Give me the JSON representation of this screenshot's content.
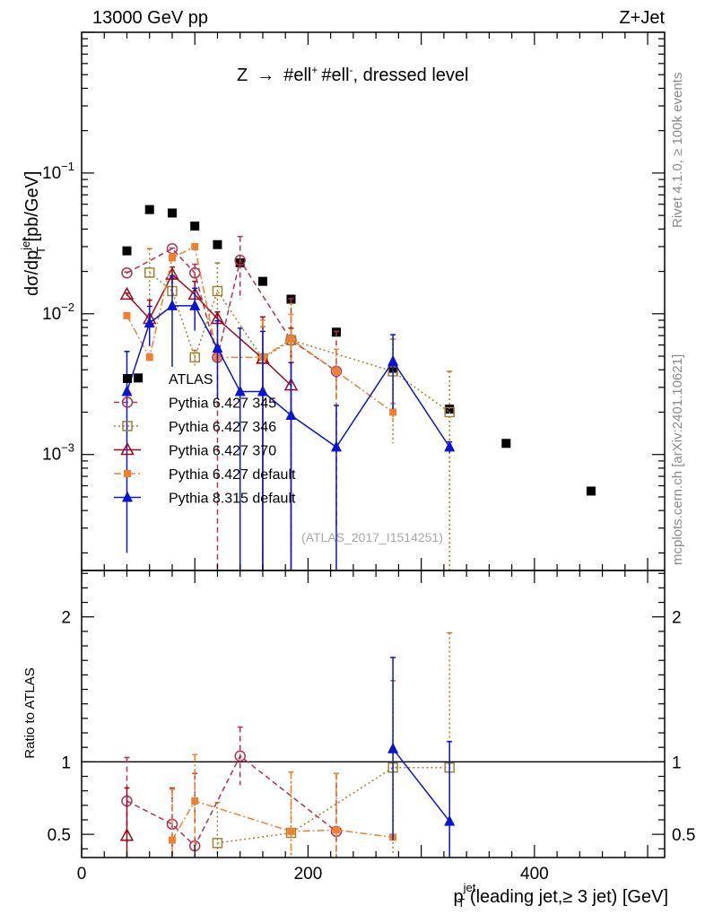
{
  "header": {
    "left": "13000 GeV pp",
    "right": "Z+Jet"
  },
  "side_text": {
    "rivet": "Rivet 4.1.0, ≥ 100k events",
    "mcplots": "mcplots.cern.ch [arXiv:2401.10621]"
  },
  "chart_data": [
    {
      "type": "scatter",
      "panel": "main",
      "title": "Z → #ell⁺ #ell⁻, dressed level",
      "title_parts": {
        "z": "Z",
        "arrow": "→",
        "ell1": "#ell",
        "sup1": "+",
        "ell2": "#ell",
        "sup2": "-",
        "rest": ", dressed level"
      },
      "ylabel": {
        "main": "dσ/dp",
        "sup": "jet",
        "sub": "T",
        "unit": " [pb/GeV]"
      },
      "yscale": "log",
      "ylim": [
        0.00015,
        1.0
      ],
      "xlim": [
        0,
        515
      ],
      "y_ticks": [
        {
          "value": 0.1,
          "base": "10",
          "exp": "−1"
        },
        {
          "value": 0.01,
          "base": "10",
          "exp": "−2"
        },
        {
          "value": 0.001,
          "base": "10",
          "exp": "−3"
        }
      ],
      "watermark": "(ATLAS_2017_I1514251)",
      "legend_position": "middle-left",
      "series": [
        {
          "name": "ATLAS",
          "color": "#000000",
          "marker": "square-filled",
          "line": "none",
          "x": [
            40,
            50,
            60,
            80,
            100,
            120,
            140,
            160,
            185,
            225,
            275,
            325,
            375,
            450
          ],
          "y": [
            0.028,
            0.0035,
            0.055,
            0.052,
            0.042,
            0.031,
            0.023,
            0.017,
            0.0127,
            0.0074,
            0.0041,
            0.0021,
            0.0012,
            0.00055
          ]
        },
        {
          "name": "Pythia 6.427 345",
          "color": "#b5304f",
          "marker": "circle-open",
          "line": "dashed",
          "x": [
            40,
            80,
            100,
            120,
            140,
            185,
            225
          ],
          "y": [
            0.0195,
            0.029,
            0.0195,
            0.0049,
            0.024,
            0.0065,
            0.0039
          ],
          "err_up": [
            0.0003,
            0.0003,
            0.003,
            0.0054,
            0.0114,
            0.0063,
            0.0036
          ]
        },
        {
          "name": "Pythia 6.427 346",
          "color": "#a0822f",
          "marker": "square-open",
          "line": "dotted",
          "x": [
            60,
            80,
            100,
            120,
            160,
            185,
            275,
            325
          ],
          "y": [
            0.0196,
            0.0145,
            0.0049,
            0.0145,
            0.0048,
            0.0065,
            0.0039,
            0.002
          ],
          "err_up": [
            0.0094,
            0.0035,
            0.0006,
            0.0085,
            0.0033,
            0.0053,
            0.0027,
            0.0019
          ]
        },
        {
          "name": "Pythia 6.427 370",
          "color": "#9b0a1c",
          "marker": "triangle-open",
          "line": "solid",
          "x": [
            40,
            60,
            80,
            100,
            120,
            160,
            185
          ],
          "y": [
            0.0137,
            0.0092,
            0.019,
            0.0137,
            0.0092,
            0.0048,
            0.0031
          ],
          "err_up": [
            0.0003,
            0.0033,
            0.0025,
            0.0033,
            0.0011,
            0.0047,
            0.0048
          ]
        },
        {
          "name": "Pythia 6.427 default",
          "color": "#f08030",
          "marker": "square-filled-small",
          "line": "dashdot",
          "x": [
            40,
            60,
            80,
            100,
            120,
            160,
            185,
            225,
            275
          ],
          "y": [
            0.0097,
            0.0049,
            0.025,
            0.03,
            0.0049,
            0.0049,
            0.0066,
            0.0039,
            0.002
          ],
          "err_up": [
            0.0003,
            0.0003,
            0.0016,
            0.0003,
            0.0005,
            0.0041,
            0.0033,
            0.0017,
            0.0003
          ]
        },
        {
          "name": "Pythia 8.315 default",
          "color": "#0a14d2",
          "marker": "triangle-filled",
          "line": "solid",
          "x": [
            40,
            60,
            80,
            100,
            120,
            140,
            160,
            185,
            225,
            275,
            325
          ],
          "y": [
            0.0028,
            0.0086,
            0.0114,
            0.0114,
            0.0057,
            0.0028,
            0.0028,
            0.0019,
            0.00113,
            0.0046,
            0.00113
          ],
          "err_up": [
            0.0026,
            0.0027,
            0.0072,
            0.0038,
            0.0032,
            0.0051,
            0.0047,
            0.0026,
            0.0011,
            0.0025,
            0.0001
          ]
        }
      ]
    },
    {
      "type": "scatter",
      "panel": "ratio",
      "ylabel": "Ratio to ATLAS",
      "xlabel": {
        "main": "p",
        "sup": "jet",
        "sub": "T",
        "rest": " (leading jet,≥ 3 jet) [GeV]"
      },
      "xlim": [
        0,
        515
      ],
      "ylim": [
        0.34,
        2.32
      ],
      "x_ticks": [
        0,
        200,
        400
      ],
      "x_tick_labels": [
        "0",
        "200",
        "400"
      ],
      "y_ticks": [
        0.5,
        1,
        2
      ],
      "y_tick_labels": [
        "0.5",
        "1",
        "2"
      ],
      "reference_line": 1,
      "series": [
        {
          "name": "Pythia 6.427 345",
          "color": "#b5304f",
          "marker": "circle-open",
          "line": "dashed",
          "x": [
            40,
            80,
            100,
            140,
            225
          ],
          "y": [
            0.73,
            0.57,
            0.42,
            1.04,
            0.52
          ],
          "err_up": [
            0.3,
            0.25,
            0.5,
            0.2,
            0.4
          ]
        },
        {
          "name": "Pythia 6.427 346",
          "color": "#a0822f",
          "marker": "square-open",
          "line": "dotted",
          "x": [
            120,
            185,
            275,
            325
          ],
          "y": [
            0.44,
            0.51,
            0.96,
            0.96
          ],
          "err_up": [
            0.28,
            0.42,
            0.6,
            0.93
          ]
        },
        {
          "name": "Pythia 6.427 370",
          "color": "#9b0a1c",
          "marker": "triangle-open",
          "line": "solid",
          "x": [
            40
          ],
          "y": [
            0.49
          ],
          "err_up": [
            0.33
          ]
        },
        {
          "name": "Pythia 6.427 default",
          "color": "#f08030",
          "marker": "square-filled-small",
          "line": "dashdot",
          "x": [
            80,
            100,
            185,
            225,
            275
          ],
          "y": [
            0.46,
            0.73,
            0.52,
            0.53,
            0.48
          ],
          "err_up": [
            0.35,
            0.32,
            0.41,
            0.39,
            0.02
          ]
        },
        {
          "name": "Pythia 8.315 default",
          "color": "#0a14d2",
          "marker": "triangle-filled",
          "line": "solid",
          "x": [
            275,
            325
          ],
          "y": [
            1.09,
            0.59
          ],
          "err_up": [
            0.63,
            0.55
          ]
        }
      ]
    }
  ]
}
